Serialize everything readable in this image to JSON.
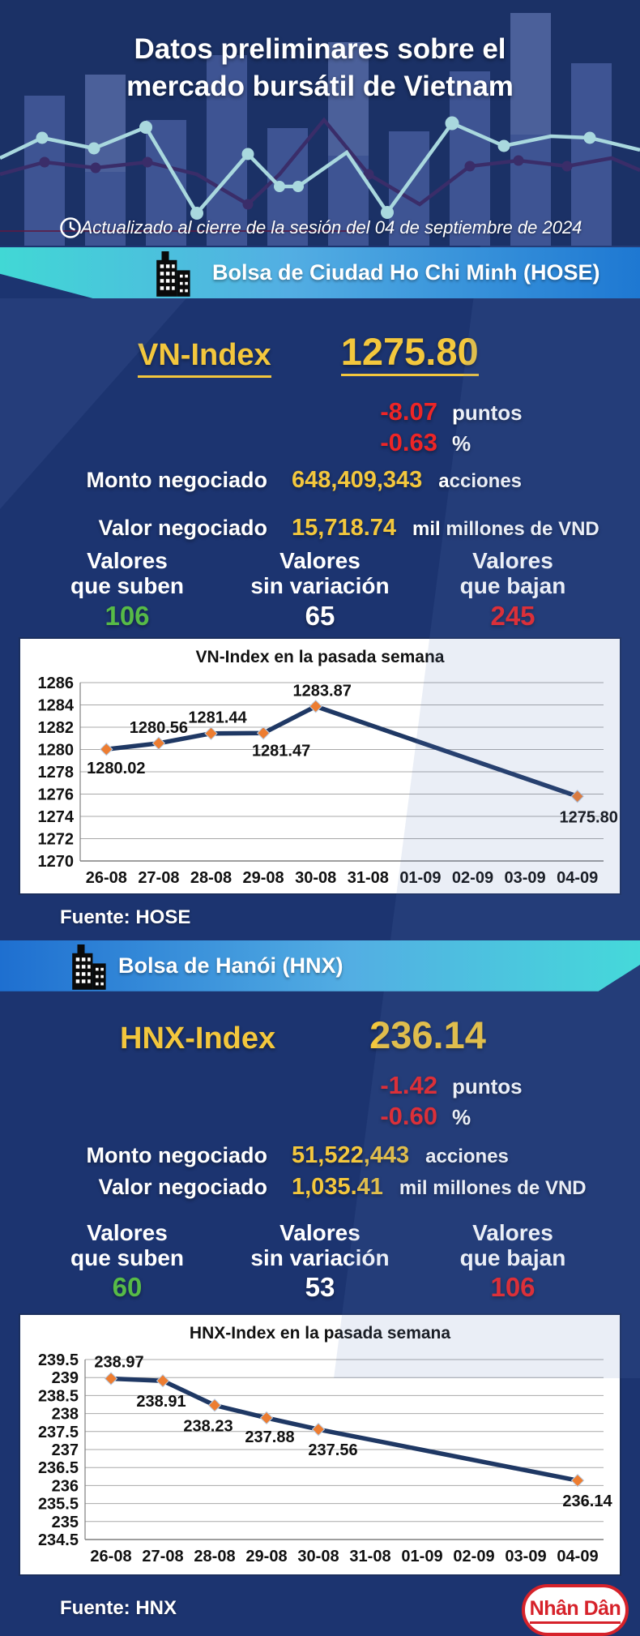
{
  "colors": {
    "background": "#1c3470",
    "yellow": "#f3c73d",
    "red": "#ee2526",
    "green": "#57bb47",
    "banner_cyan": "#41d8d5",
    "banner_blue": "#1e78d2",
    "chart_line": "#1f3864",
    "chart_marker": "#ed7d31",
    "logo_red": "#d6222a"
  },
  "header": {
    "title_line1": "Datos preliminares sobre el",
    "title_line2": "mercado bursátil de Vietnam",
    "updated": "Actualizado al cierre de la sesión del 04 de septiembre de 2024"
  },
  "hose": {
    "banner": "Bolsa de Ciudad Ho Chi Minh (HOSE)",
    "index_label": "VN-Index",
    "index_value": "1275.80",
    "change_points": "-8.07",
    "points_unit": "puntos",
    "change_percent": "-0.63",
    "percent_unit": "%",
    "volume_label": "Monto negociado",
    "volume_value": "648,409,343",
    "volume_unit": "acciones",
    "turnover_label": "Valor negociado",
    "turnover_value": "15,718.74",
    "turnover_unit": "mil millones de VND",
    "stats": [
      {
        "line1": "Valores",
        "line2": "que suben",
        "value": "106"
      },
      {
        "line1": "Valores",
        "line2": "sin variación",
        "value": "65"
      },
      {
        "line1": "Valores",
        "line2": "que bajan",
        "value": "245"
      }
    ],
    "fuente": "Fuente: HOSE"
  },
  "hnx": {
    "banner": "Bolsa de Hanói (HNX)",
    "index_label": "HNX-Index",
    "index_value": "236.14",
    "change_points": "-1.42",
    "points_unit": "puntos",
    "change_percent": "-0.60",
    "percent_unit": "%",
    "volume_label": "Monto negociado",
    "volume_value": "51,522,443",
    "volume_unit": "acciones",
    "turnover_label": "Valor negociado",
    "turnover_value": "1,035.41",
    "turnover_unit": "mil millones de VND",
    "stats": [
      {
        "line1": "Valores",
        "line2": "que suben",
        "value": "60"
      },
      {
        "line1": "Valores",
        "line2": "sin variación",
        "value": "53"
      },
      {
        "line1": "Valores",
        "line2": "que bajan",
        "value": "106"
      }
    ],
    "fuente": "Fuente:  HNX"
  },
  "chart_data": [
    {
      "id": "vn-index-week",
      "type": "line",
      "title": "VN-Index en la pasada semana",
      "categories": [
        "26-08",
        "27-08",
        "28-08",
        "29-08",
        "30-08",
        "31-08",
        "01-09",
        "02-09",
        "03-09",
        "04-09"
      ],
      "values": [
        1280.02,
        1280.56,
        1281.44,
        1281.47,
        1283.87,
        null,
        null,
        null,
        null,
        1275.8
      ],
      "ylim": [
        1270,
        1286
      ],
      "yticks": [
        1286,
        1284,
        1282,
        1280,
        1278,
        1276,
        1274,
        1272,
        1270
      ],
      "grid": true,
      "legend": "none",
      "line_color": "#1f3864",
      "marker": "diamond",
      "marker_color": "#ed7d31",
      "label_offsets": {
        "0": [
          12,
          30
        ],
        "1": [
          0,
          -13
        ],
        "2": [
          8,
          -13
        ],
        "3": [
          22,
          28
        ],
        "4": [
          8,
          -13
        ],
        "9": [
          14,
          32
        ]
      }
    },
    {
      "id": "hnx-index-week",
      "type": "line",
      "title": "HNX-Index en la pasada semana",
      "categories": [
        "26-08",
        "27-08",
        "28-08",
        "29-08",
        "30-08",
        "31-08",
        "01-09",
        "02-09",
        "03-09",
        "04-09"
      ],
      "values": [
        238.97,
        238.91,
        238.23,
        237.88,
        237.56,
        null,
        null,
        null,
        null,
        236.14
      ],
      "ylim": [
        234.5,
        239.5
      ],
      "yticks": [
        239.5,
        239,
        238.5,
        238,
        237.5,
        237,
        236.5,
        236,
        235.5,
        235,
        234.5
      ],
      "grid": true,
      "legend": "none",
      "line_color": "#1f3864",
      "marker": "diamond",
      "marker_color": "#ed7d31",
      "label_offsets": {
        "0": [
          10,
          -14
        ],
        "1": [
          -2,
          32
        ],
        "2": [
          -8,
          32
        ],
        "3": [
          4,
          30
        ],
        "4": [
          18,
          32
        ],
        "9": [
          12,
          32
        ]
      }
    }
  ],
  "footer": {
    "logo_text": "Nhân Dân"
  }
}
